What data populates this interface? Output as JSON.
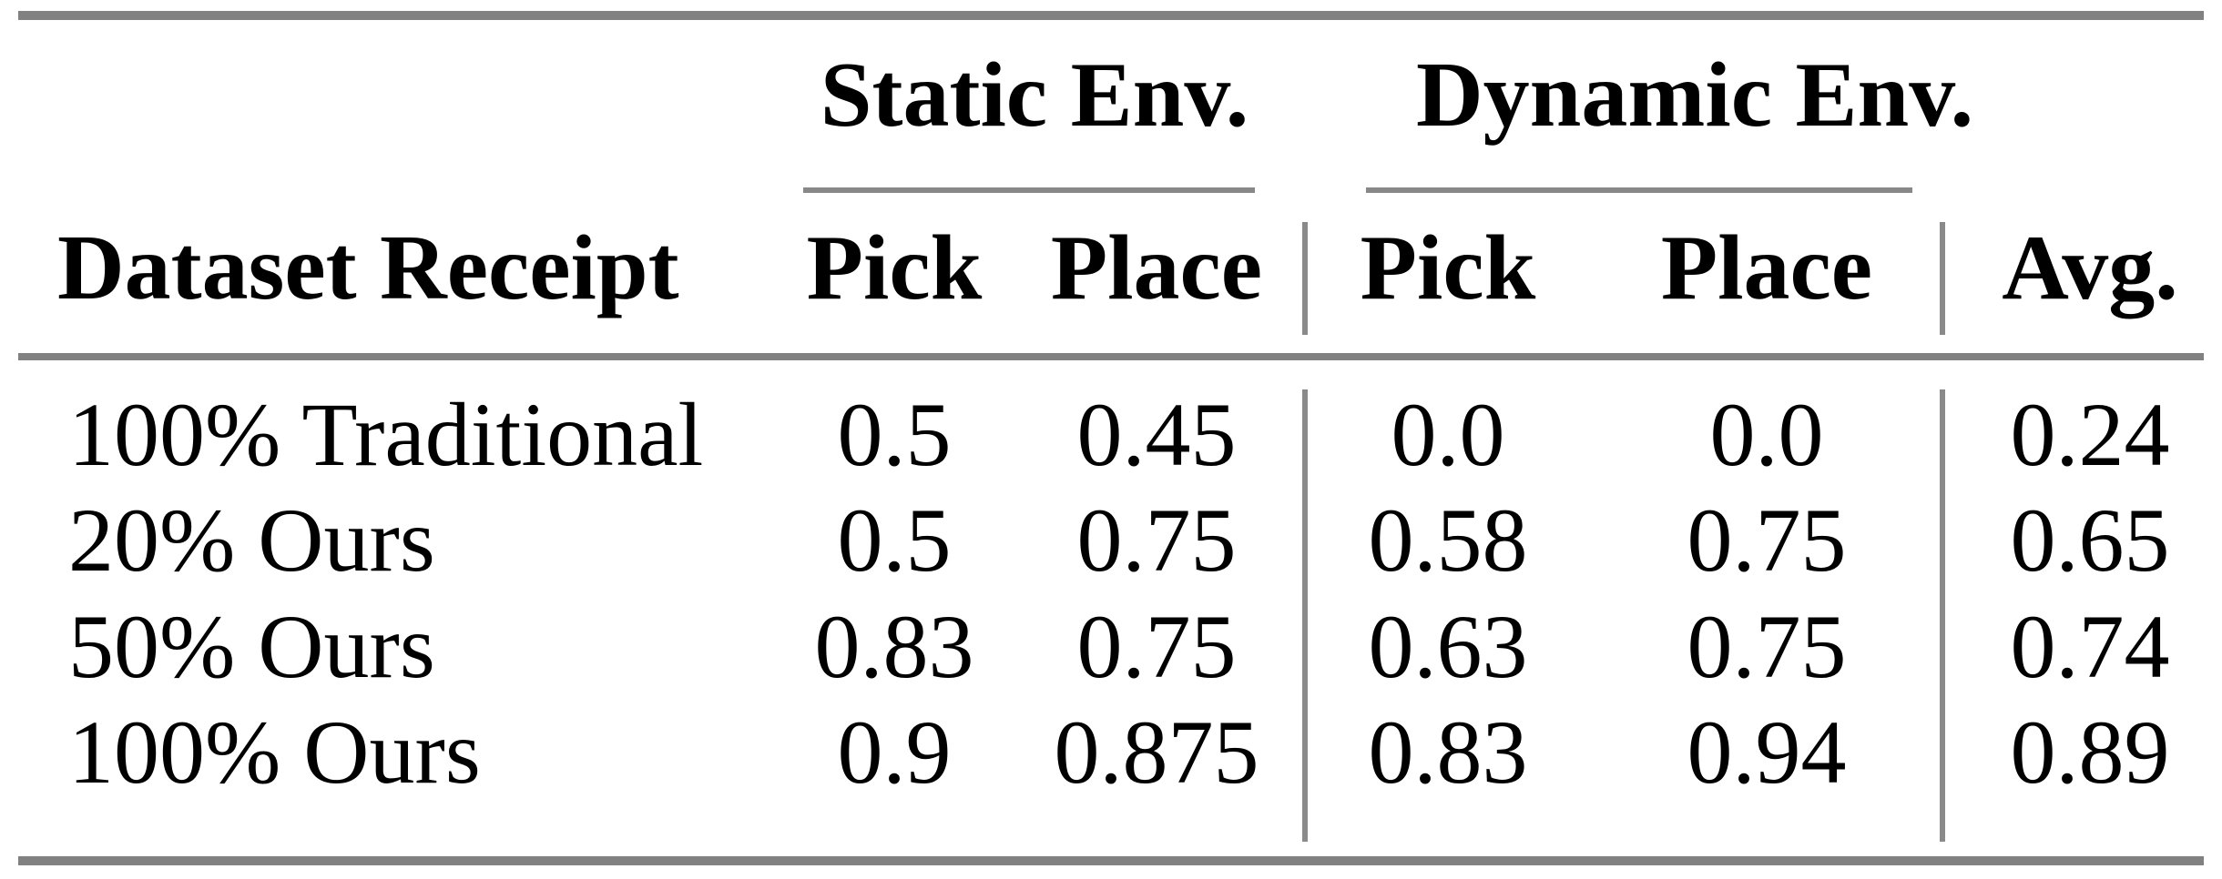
{
  "table": {
    "groups": [
      {
        "label": "Static Env."
      },
      {
        "label": "Dynamic Env."
      }
    ],
    "headers": {
      "row_label": "Dataset Receipt",
      "static_pick": "Pick",
      "static_place": "Place",
      "dynamic_pick": "Pick",
      "dynamic_place": "Place",
      "avg": "Avg."
    },
    "rows": [
      {
        "label": "100% Traditional",
        "values": [
          "0.5",
          "0.45",
          "0.0",
          "0.0",
          "0.24"
        ]
      },
      {
        "label": "20% Ours",
        "values": [
          "0.5",
          "0.75",
          "0.58",
          "0.75",
          "0.65"
        ]
      },
      {
        "label": "50% Ours",
        "values": [
          "0.83",
          "0.75",
          "0.63",
          "0.75",
          "0.74"
        ]
      },
      {
        "label": "100% Ours",
        "values": [
          "0.9",
          "0.875",
          "0.83",
          "0.94",
          "0.89"
        ]
      }
    ]
  },
  "colors": {
    "rule_gray": "#818181",
    "text": "#000000",
    "background": "#ffffff"
  }
}
